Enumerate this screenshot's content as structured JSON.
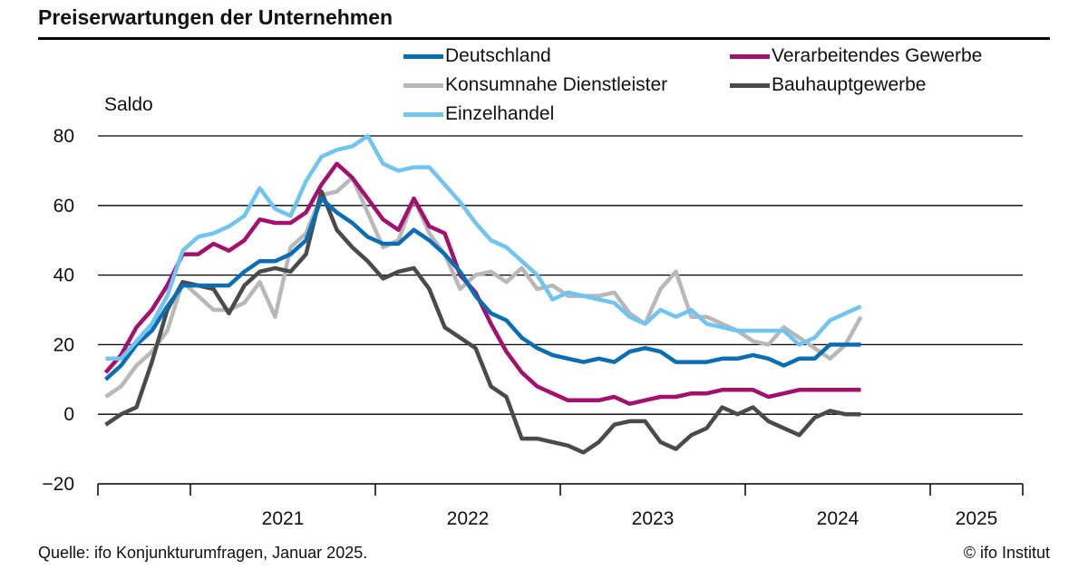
{
  "title": "Preiserwartungen der Unternehmen",
  "source": "Quelle: ifo Konjunkturumfragen, Januar 2025.",
  "copyright": "© ifo Institut",
  "chart_data": {
    "type": "line",
    "ylabel": "Saldo",
    "ylim": [
      -20,
      80
    ],
    "yticks": [
      80,
      60,
      40,
      20,
      0,
      -20
    ],
    "ytick_labels": [
      "80",
      "60",
      "40",
      "20",
      "0",
      "−20"
    ],
    "grid": true,
    "legend_position": "top-right",
    "x_years": [
      "2021",
      "2022",
      "2023",
      "2024",
      "2025"
    ],
    "x_start": "2020-07",
    "x_end": "2025-06",
    "months": [
      "2020-07",
      "2020-08",
      "2020-09",
      "2020-10",
      "2020-11",
      "2020-12",
      "2021-01",
      "2021-02",
      "2021-03",
      "2021-04",
      "2021-05",
      "2021-06",
      "2021-07",
      "2021-08",
      "2021-09",
      "2021-10",
      "2021-11",
      "2021-12",
      "2022-01",
      "2022-02",
      "2022-03",
      "2022-04",
      "2022-05",
      "2022-06",
      "2022-07",
      "2022-08",
      "2022-09",
      "2022-10",
      "2022-11",
      "2022-12",
      "2023-01",
      "2023-02",
      "2023-03",
      "2023-04",
      "2023-05",
      "2023-06",
      "2023-07",
      "2023-08",
      "2023-09",
      "2023-10",
      "2023-11",
      "2023-12",
      "2024-01",
      "2024-02",
      "2024-03",
      "2024-04",
      "2024-05",
      "2024-06",
      "2024-07",
      "2024-08",
      "2024-09",
      "2024-10",
      "2024-11",
      "2024-12",
      "2025-01"
    ],
    "series": [
      {
        "name": "Deutschland",
        "color": "#0a6eb4",
        "values": [
          10,
          14,
          20,
          24,
          31,
          37,
          37,
          37,
          37,
          41,
          44,
          44,
          46,
          50,
          62,
          58,
          55,
          51,
          49,
          49,
          53,
          50,
          46,
          41,
          34,
          29,
          27,
          22,
          19,
          17,
          16,
          15,
          16,
          15,
          18,
          19,
          18,
          15,
          15,
          15,
          16,
          16,
          17,
          16,
          14,
          16,
          16,
          20,
          20,
          20,
          null,
          null,
          null,
          null,
          null
        ]
      },
      {
        "name": "Verarbeitendes Gewerbe",
        "color": "#a3106e",
        "values": [
          12,
          17,
          25,
          30,
          37,
          46,
          46,
          49,
          47,
          50,
          56,
          55,
          55,
          58,
          66,
          72,
          68,
          62,
          56,
          53,
          62,
          54,
          52,
          40,
          35,
          26,
          18,
          12,
          8,
          6,
          4,
          4,
          4,
          5,
          3,
          4,
          5,
          5,
          6,
          6,
          7,
          7,
          7,
          5,
          6,
          7,
          7,
          7,
          7,
          7,
          null,
          null,
          null,
          null,
          null
        ]
      },
      {
        "name": "Konsumnahe Dienstleister",
        "color": "#b8b8b8",
        "values": [
          5,
          8,
          14,
          18,
          24,
          38,
          34,
          30,
          30,
          32,
          38,
          28,
          48,
          52,
          63,
          64,
          68,
          58,
          48,
          50,
          62,
          52,
          46,
          36,
          40,
          41,
          38,
          42,
          36,
          37,
          34,
          34,
          34,
          35,
          29,
          26,
          36,
          41,
          28,
          28,
          26,
          24,
          21,
          20,
          25,
          22,
          19,
          16,
          20,
          28,
          null,
          null,
          null,
          null,
          null
        ]
      },
      {
        "name": "Bauhauptgewerbe",
        "color": "#4a4a4a",
        "values": [
          -3,
          0,
          2,
          15,
          30,
          38,
          37,
          36,
          29,
          37,
          41,
          42,
          41,
          46,
          64,
          53,
          48,
          44,
          39,
          41,
          42,
          36,
          25,
          22,
          19,
          8,
          5,
          -7,
          -7,
          -8,
          -9,
          -11,
          -8,
          -3,
          -2,
          -2,
          -8,
          -10,
          -6,
          -4,
          2,
          0,
          2,
          -2,
          -4,
          -6,
          -1,
          1,
          0,
          0,
          null,
          null,
          null,
          null,
          null
        ]
      },
      {
        "name": "Einzelhandel",
        "color": "#6fc5f0",
        "values": [
          16,
          16,
          21,
          26,
          34,
          47,
          51,
          52,
          54,
          57,
          65,
          59,
          57,
          67,
          74,
          76,
          77,
          80,
          72,
          70,
          71,
          71,
          66,
          61,
          55,
          50,
          48,
          44,
          40,
          33,
          35,
          34,
          33,
          32,
          28,
          26,
          30,
          28,
          30,
          26,
          25,
          24,
          24,
          24,
          24,
          20,
          22,
          27,
          29,
          31,
          null,
          null,
          null,
          null,
          null
        ]
      }
    ]
  }
}
